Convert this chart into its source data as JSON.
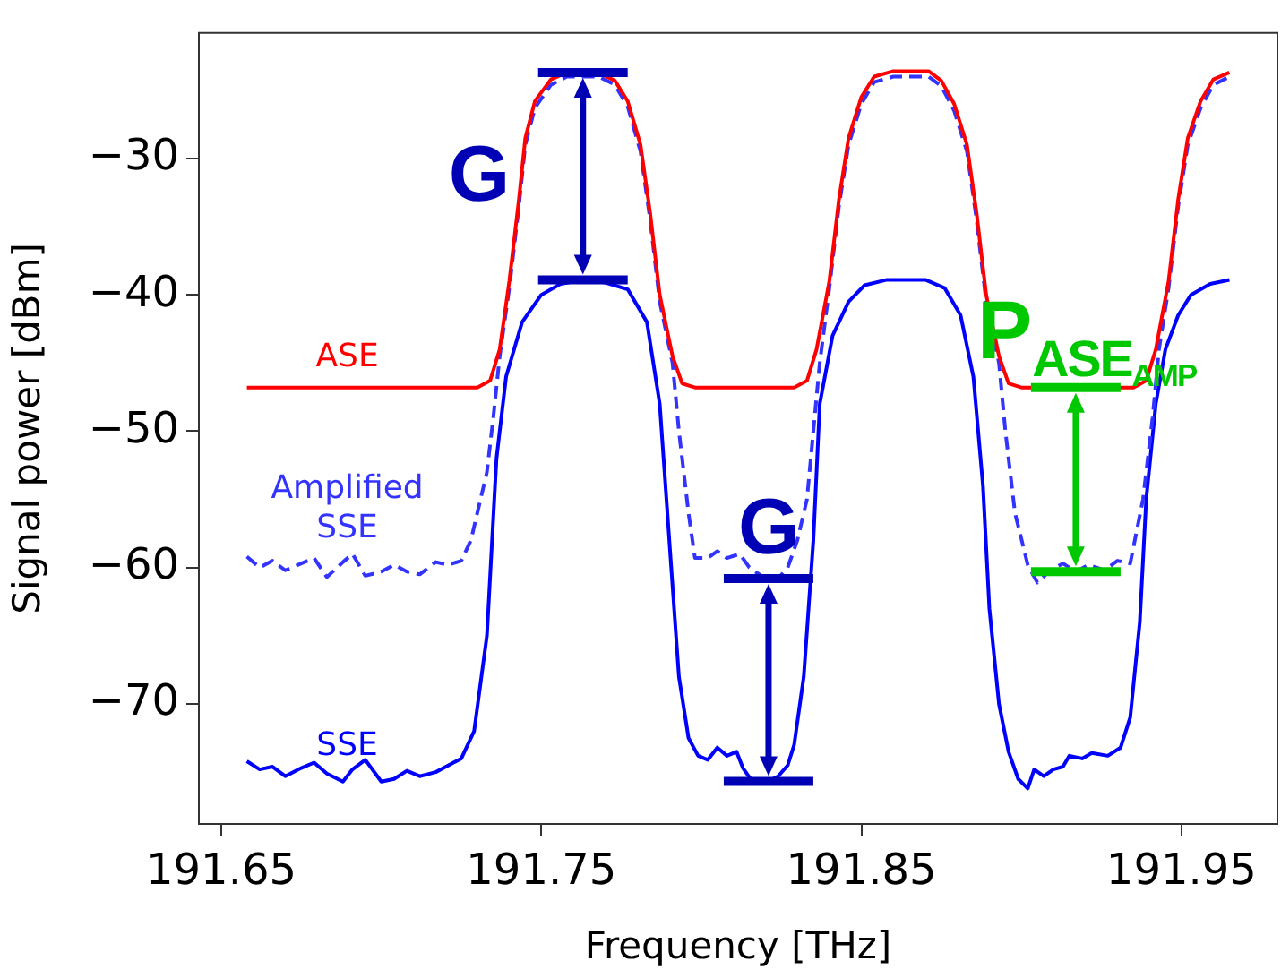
{
  "chart_data": {
    "type": "line",
    "xlabel": "Frequency [THz]",
    "ylabel": "Signal power [dBm]",
    "xlim": [
      191.643,
      191.98
    ],
    "xticks": [
      191.65,
      191.75,
      191.85,
      191.95
    ],
    "ylim": [
      -78.8,
      -20.8
    ],
    "yticks": [
      -30,
      -40,
      -50,
      -60,
      -70
    ],
    "grid": false,
    "legend": false,
    "marker": "none",
    "series": [
      {
        "name": "ASE",
        "color": "#ff0000",
        "line_style": "solid",
        "x": [
          191.658,
          191.73,
          191.734,
          191.737,
          191.74,
          191.743,
          191.745,
          191.748,
          191.753,
          191.758,
          191.768,
          191.773,
          191.777,
          191.781,
          191.784,
          191.787,
          191.791,
          191.794,
          191.798,
          191.829,
          191.833,
          191.836,
          191.84,
          191.843,
          191.846,
          191.85,
          191.854,
          191.86,
          191.871,
          191.875,
          191.879,
          191.883,
          191.886,
          191.889,
          191.893,
          191.896,
          191.9,
          191.935,
          191.939,
          191.942,
          191.946,
          191.949,
          191.952,
          191.956,
          191.96,
          191.965
        ],
        "values": [
          -46.8,
          -46.8,
          -46.3,
          -44,
          -39,
          -33,
          -28.5,
          -25.8,
          -24.2,
          -23.7,
          -23.7,
          -24.3,
          -25.8,
          -29,
          -34,
          -40,
          -44.5,
          -46.5,
          -46.8,
          -46.8,
          -46.3,
          -44,
          -39,
          -33,
          -28.5,
          -25.5,
          -24,
          -23.6,
          -23.6,
          -24.3,
          -26,
          -29,
          -34,
          -40,
          -44.5,
          -46.5,
          -46.8,
          -46.8,
          -46.3,
          -44,
          -39,
          -33,
          -28.5,
          -25.8,
          -24.2,
          -23.7
        ]
      },
      {
        "name": "Amplified SSE",
        "color": "#3333ff",
        "line_style": "dashed",
        "x": [
          191.658,
          191.662,
          191.666,
          191.67,
          191.675,
          191.679,
          191.683,
          191.688,
          191.691,
          191.695,
          191.7,
          191.704,
          191.708,
          191.712,
          191.717,
          191.721,
          191.725,
          191.728,
          191.73,
          191.733,
          191.735,
          191.737,
          191.74,
          191.743,
          191.745,
          191.748,
          191.753,
          191.758,
          191.768,
          191.773,
          191.777,
          191.781,
          191.784,
          191.787,
          191.791,
          191.793,
          191.796,
          191.798,
          191.802,
          191.805,
          191.808,
          191.812,
          191.815,
          191.82,
          191.824,
          191.827,
          191.83,
          191.833,
          191.835,
          191.837,
          191.84,
          191.843,
          191.846,
          191.85,
          191.854,
          191.86,
          191.871,
          191.875,
          191.879,
          191.883,
          191.886,
          191.889,
          191.893,
          191.895,
          191.898,
          191.902,
          191.905,
          191.909,
          191.913,
          191.917,
          191.921,
          191.926,
          191.93,
          191.934,
          191.938,
          191.941,
          191.943,
          191.946,
          191.949,
          191.952,
          191.956,
          191.96,
          191.965
        ],
        "values": [
          -59.2,
          -60,
          -59.5,
          -60.2,
          -59.7,
          -59.3,
          -60.7,
          -59.6,
          -59,
          -60.6,
          -60.3,
          -59.8,
          -60.3,
          -60.5,
          -59.6,
          -59.8,
          -59.5,
          -58,
          -56,
          -53,
          -49,
          -44.5,
          -39.5,
          -33.5,
          -29,
          -26.3,
          -24.6,
          -24,
          -24,
          -24.6,
          -26.2,
          -29.5,
          -34.5,
          -40.5,
          -45,
          -50,
          -56,
          -59.3,
          -59.3,
          -58.8,
          -59.3,
          -59,
          -60,
          -60.8,
          -60.8,
          -60,
          -58,
          -55,
          -50,
          -45,
          -39.5,
          -33.5,
          -29,
          -26,
          -24.4,
          -24,
          -24,
          -24.7,
          -26.5,
          -29.5,
          -34.5,
          -40.5,
          -45,
          -50,
          -56,
          -59.8,
          -61.1,
          -60.2,
          -59.7,
          -60.3,
          -59.8,
          -60.2,
          -59.5,
          -59.7,
          -55,
          -49,
          -44,
          -39.5,
          -33.5,
          -29,
          -26.3,
          -24.6,
          -24
        ]
      },
      {
        "name": "SSE",
        "color": "#0000ff",
        "line_style": "solid",
        "x": [
          191.658,
          191.662,
          191.666,
          191.67,
          191.675,
          191.679,
          191.683,
          191.688,
          191.691,
          191.695,
          191.7,
          191.704,
          191.708,
          191.712,
          191.717,
          191.721,
          191.725,
          191.729,
          191.733,
          191.736,
          191.739,
          191.744,
          191.75,
          191.756,
          191.763,
          191.77,
          191.777,
          191.783,
          191.787,
          191.79,
          191.793,
          191.796,
          191.799,
          191.802,
          191.805,
          191.808,
          191.811,
          191.813,
          191.816,
          191.82,
          191.824,
          191.827,
          191.829,
          191.832,
          191.835,
          191.837,
          191.841,
          191.846,
          191.851,
          191.858,
          191.87,
          191.876,
          191.881,
          191.885,
          191.888,
          191.89,
          191.893,
          191.896,
          191.899,
          191.902,
          191.904,
          191.907,
          191.91,
          191.913,
          191.915,
          191.919,
          191.922,
          191.927,
          191.931,
          191.934,
          191.937,
          191.939,
          191.942,
          191.945,
          191.949,
          191.953,
          191.959,
          191.965
        ],
        "values": [
          -74.2,
          -74.8,
          -74.6,
          -75.3,
          -74.7,
          -74.3,
          -75.1,
          -75.7,
          -74.8,
          -74.1,
          -75.7,
          -75.5,
          -74.9,
          -75.3,
          -75,
          -74.5,
          -74,
          -72,
          -65,
          -52,
          -46,
          -42,
          -40,
          -39.2,
          -38.9,
          -39.1,
          -39.6,
          -42,
          -48,
          -58,
          -68,
          -72.5,
          -73.8,
          -74.1,
          -73.2,
          -73.8,
          -73.5,
          -74.7,
          -75.7,
          -75.8,
          -75.3,
          -74.5,
          -73,
          -68,
          -58,
          -48,
          -43,
          -40.5,
          -39.3,
          -38.9,
          -38.9,
          -39.5,
          -41.5,
          -46,
          -54,
          -63,
          -70,
          -73.5,
          -75.5,
          -76.2,
          -74.8,
          -75.3,
          -74.8,
          -74.6,
          -73.8,
          -74,
          -73.6,
          -73.8,
          -73.2,
          -71,
          -64,
          -55,
          -48,
          -44,
          -41.5,
          -40,
          -39.2,
          -38.9
        ]
      }
    ],
    "annotations": [
      {
        "text": "G",
        "x": 191.763,
        "y": -23.7
      },
      {
        "text": "G",
        "x": 191.821,
        "y": -60.8
      },
      {
        "text": "P$_{ASE}$$_{AMP}$",
        "x": 191.917,
        "y": -46.8
      }
    ]
  }
}
